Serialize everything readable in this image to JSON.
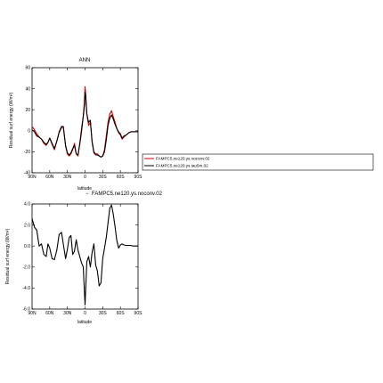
{
  "chart_data": [
    {
      "type": "line",
      "title": "ANN",
      "subtitle": "",
      "xlabel": "latitude",
      "ylabel": "Residual surf energy (W/m²)",
      "xlim": [
        -90,
        90
      ],
      "ylim": [
        -40,
        60
      ],
      "x_tick_labels": [
        "90N",
        "60N",
        "30N",
        "0",
        "30S",
        "60S",
        "90S"
      ],
      "y_tick_values": [
        -40,
        -20,
        0,
        20,
        40,
        60
      ],
      "y_tick_labels": [
        "-40",
        "-20",
        "0",
        "20",
        "40",
        "60"
      ],
      "grid": false,
      "legend_placement": "right",
      "series": [
        {
          "name": "FAMPC5.ne120.ys.noconv.02",
          "color": "#cc0000",
          "x": [
            -90,
            -86,
            -82,
            -78,
            -74,
            -70,
            -66,
            -63,
            -60,
            -56,
            -52,
            -48,
            -44,
            -40,
            -37,
            -33,
            -30,
            -27,
            -24,
            -21,
            -18,
            -15,
            -12,
            -9,
            -6,
            -3,
            -1,
            0,
            1,
            3,
            6,
            9,
            12,
            15,
            18,
            21,
            24,
            27,
            30,
            33,
            36,
            39,
            42,
            45,
            48,
            51,
            54,
            57,
            60,
            63,
            66,
            70,
            74,
            78,
            82,
            86,
            90
          ],
          "y": [
            4,
            1,
            -3,
            -6,
            -8,
            -12,
            -14,
            -11,
            -7,
            -13,
            -18,
            -10,
            -2,
            3,
            4,
            -15,
            -22,
            -24,
            -22,
            -18,
            -12,
            -22,
            -24,
            -12,
            2,
            14,
            30,
            42,
            35,
            16,
            5,
            8,
            -10,
            -20,
            -22,
            -22,
            -24,
            -25,
            -24,
            -18,
            -5,
            8,
            16,
            19,
            13,
            8,
            2,
            -2,
            -4,
            -8,
            -6,
            -4,
            -2,
            -1,
            -1,
            -1,
            -1
          ]
        },
        {
          "name": "FAMPC5.ne120.ys.tau5m.02",
          "color": "#000000",
          "x": [
            -90,
            -86,
            -82,
            -78,
            -74,
            -70,
            -66,
            -63,
            -60,
            -56,
            -52,
            -48,
            -44,
            -40,
            -37,
            -33,
            -30,
            -27,
            -24,
            -21,
            -18,
            -15,
            -12,
            -9,
            -6,
            -3,
            -1,
            0,
            1,
            3,
            6,
            9,
            12,
            15,
            18,
            21,
            24,
            27,
            30,
            33,
            36,
            39,
            42,
            45,
            48,
            51,
            54,
            57,
            60,
            63,
            66,
            70,
            74,
            78,
            82,
            86,
            90
          ],
          "y": [
            1,
            -1,
            -5,
            -6,
            -8,
            -11,
            -13,
            -11,
            -7,
            -12,
            -17,
            -10,
            -1,
            4,
            4,
            -14,
            -21,
            -23,
            -21,
            -17,
            -14,
            -22,
            -23,
            -13,
            -1,
            14,
            24,
            37,
            34,
            16,
            8,
            10,
            -11,
            -21,
            -23,
            -23,
            -24,
            -25,
            -24,
            -20,
            -9,
            5,
            12,
            15,
            11,
            6,
            2,
            -1,
            -3,
            -7,
            -5,
            -4,
            -2,
            -1,
            -1,
            -1,
            -1
          ]
        }
      ]
    },
    {
      "type": "line",
      "title": "FAMPC5.ne120.ys.noconv.02",
      "title_prefix": "−",
      "xlabel": "latitude",
      "ylabel": "Residual surf energy (W/m²)",
      "xlim": [
        -90,
        90
      ],
      "ylim": [
        -6,
        4
      ],
      "x_tick_labels": [
        "90N",
        "60N",
        "30N",
        "0",
        "30S",
        "60S",
        "90S"
      ],
      "y_tick_values": [
        -6,
        -4,
        -2,
        0,
        2,
        4
      ],
      "y_tick_labels": [
        "-6.0",
        "-4.0",
        "-2.0",
        "0.0",
        "2.0",
        "4.0"
      ],
      "grid": false,
      "series": [
        {
          "color": "#000000",
          "x": [
            -90,
            -86,
            -82,
            -78,
            -74,
            -70,
            -66,
            -63,
            -60,
            -56,
            -52,
            -48,
            -44,
            -40,
            -37,
            -33,
            -30,
            -27,
            -24,
            -21,
            -18,
            -15,
            -12,
            -9,
            -6,
            -3,
            -1,
            0,
            1,
            3,
            6,
            9,
            12,
            15,
            18,
            21,
            24,
            27,
            30,
            33,
            36,
            39,
            42,
            45,
            48,
            51,
            54,
            57,
            60,
            63,
            66,
            70,
            74,
            78,
            82,
            86,
            90
          ],
          "y": [
            2.6,
            1.8,
            1.5,
            0.0,
            0.2,
            -0.8,
            -1.0,
            0.2,
            -0.2,
            -1.2,
            -1.3,
            -0.4,
            1.1,
            1.3,
            0.2,
            -1.2,
            -0.3,
            0.8,
            1.0,
            -0.8,
            -0.5,
            0.6,
            -0.4,
            -1.0,
            -1.6,
            -2.0,
            -4.5,
            -5.6,
            -4.2,
            -1.5,
            -1.0,
            -2.0,
            -0.6,
            0.2,
            -1.8,
            -2.4,
            -3.8,
            -3.5,
            -1.2,
            -0.2,
            0.8,
            2.2,
            3.6,
            3.9,
            3.0,
            1.8,
            0.5,
            -0.2,
            0.1,
            0.2,
            0.1,
            0.05,
            0.05,
            0.05,
            0.0,
            0.0,
            0.0
          ]
        }
      ]
    }
  ]
}
